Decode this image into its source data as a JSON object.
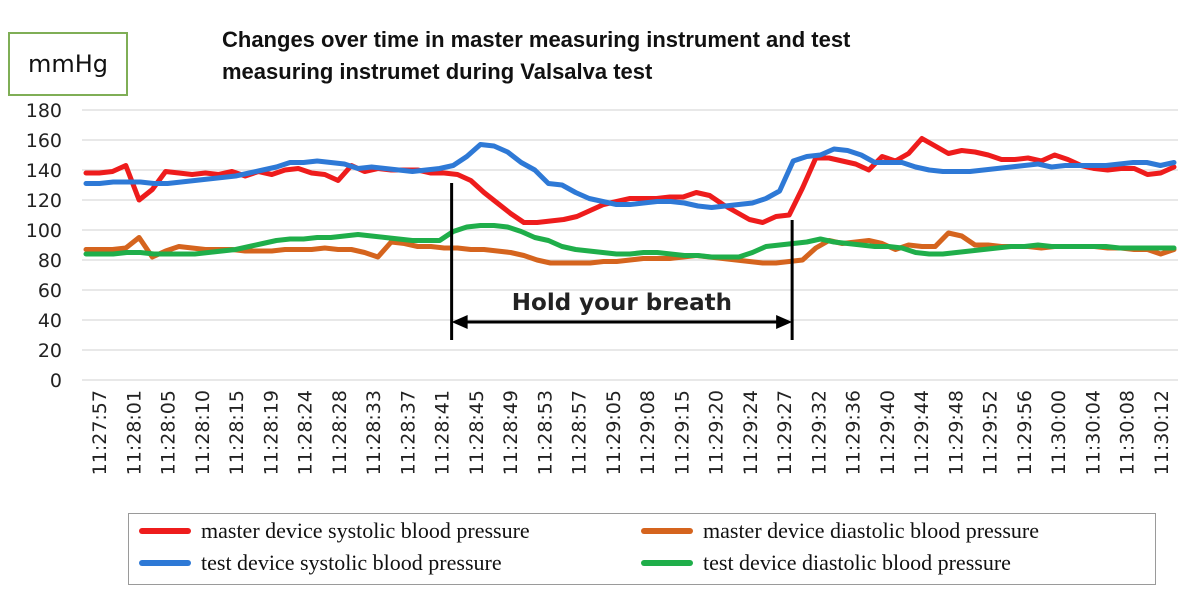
{
  "chart_data": {
    "type": "line",
    "title": "Changes over time in master measuring instrument and test measuring instrumet during Valsalva test",
    "title_lines": [
      "Changes over time in master measuring instrument and test",
      "measuring instrumet during Valsalva test"
    ],
    "ylabel": "mmHg",
    "xlabel": "",
    "ylim": [
      0,
      180
    ],
    "yticks": [
      0,
      20,
      40,
      60,
      80,
      100,
      120,
      140,
      160,
      180
    ],
    "grid": true,
    "legend_position": "bottom",
    "x_tick_labels": [
      "11:27:57",
      "11:28:01",
      "11:28:05",
      "11:28:10",
      "11:28:15",
      "11:28:19",
      "11:28:24",
      "11:28:28",
      "11:28:33",
      "11:28:37",
      "11:28:41",
      "11:28:45",
      "11:28:49",
      "11:28:53",
      "11:28:57",
      "11:29:05",
      "11:29:08",
      "11:29:15",
      "11:29:20",
      "11:29:24",
      "11:29:27",
      "11:29:32",
      "11:29:36",
      "11:29:40",
      "11:29:44",
      "11:29:48",
      "11:29:52",
      "11:29:56",
      "11:30:00",
      "11:30:04",
      "11:30:08",
      "11:30:12"
    ],
    "series": [
      {
        "name": "master device systolic blood pressure",
        "color": "#ee1c1c",
        "values": [
          138,
          138,
          139,
          143,
          120,
          127,
          139,
          138,
          137,
          138,
          137,
          139,
          136,
          139,
          137,
          140,
          141,
          138,
          137,
          133,
          143,
          139,
          141,
          140,
          140,
          140,
          138,
          138,
          137,
          133,
          125,
          118,
          111,
          105,
          105,
          106,
          107,
          109,
          113,
          117,
          119,
          121,
          121,
          121,
          122,
          122,
          125,
          123,
          117,
          112,
          107,
          105,
          109,
          110,
          128,
          148,
          148,
          146,
          144,
          140,
          149,
          146,
          151,
          161,
          156,
          151,
          153,
          152,
          150,
          147,
          147,
          148,
          146,
          150,
          147,
          143,
          141,
          140,
          141,
          141,
          137,
          138,
          142
        ]
      },
      {
        "name": "master device diastolic blood pressure",
        "color": "#d5641e",
        "values": [
          87,
          87,
          87,
          88,
          95,
          82,
          86,
          89,
          88,
          87,
          87,
          87,
          86,
          86,
          86,
          87,
          87,
          87,
          88,
          87,
          87,
          85,
          82,
          92,
          91,
          89,
          89,
          88,
          88,
          87,
          87,
          86,
          85,
          83,
          80,
          78,
          78,
          78,
          78,
          79,
          79,
          80,
          81,
          81,
          81,
          82,
          83,
          82,
          81,
          80,
          79,
          78,
          78,
          79,
          80,
          88,
          93,
          91,
          92,
          93,
          91,
          87,
          90,
          89,
          89,
          98,
          96,
          90,
          90,
          89,
          89,
          89,
          88,
          89,
          89,
          89,
          89,
          88,
          88,
          87,
          87,
          84,
          87
        ]
      },
      {
        "name": "test device systolic blood pressure",
        "color": "#2e79d6",
        "values": [
          131,
          131,
          132,
          132,
          132,
          131,
          131,
          132,
          133,
          134,
          135,
          136,
          138,
          140,
          142,
          145,
          145,
          146,
          145,
          144,
          141,
          142,
          141,
          140,
          139,
          140,
          141,
          143,
          149,
          157,
          156,
          152,
          145,
          140,
          131,
          130,
          125,
          121,
          119,
          117,
          117,
          118,
          119,
          119,
          118,
          116,
          115,
          116,
          117,
          118,
          121,
          126,
          146,
          149,
          150,
          154,
          153,
          150,
          145,
          145,
          145,
          142,
          140,
          139,
          139,
          139,
          140,
          141,
          142,
          143,
          144,
          142,
          143,
          143,
          143,
          143,
          144,
          145,
          145,
          143,
          145
        ]
      },
      {
        "name": "test device diastolic blood pressure",
        "color": "#1fae4a",
        "values": [
          84,
          84,
          84,
          85,
          85,
          84,
          84,
          84,
          84,
          85,
          86,
          87,
          89,
          91,
          93,
          94,
          94,
          95,
          95,
          96,
          97,
          96,
          95,
          94,
          93,
          93,
          93,
          99,
          102,
          103,
          103,
          102,
          99,
          95,
          93,
          89,
          87,
          86,
          85,
          84,
          84,
          85,
          85,
          84,
          83,
          83,
          82,
          82,
          82,
          85,
          89,
          90,
          91,
          92,
          94,
          92,
          91,
          90,
          89,
          89,
          88,
          85,
          84,
          84,
          85,
          86,
          87,
          88,
          89,
          89,
          90,
          89,
          89,
          89,
          89,
          89,
          88,
          88,
          88,
          88,
          88
        ]
      }
    ],
    "annotations": [
      {
        "text": "Hold your breath",
        "from": "11:28:41",
        "to": "11:29:27"
      }
    ]
  }
}
